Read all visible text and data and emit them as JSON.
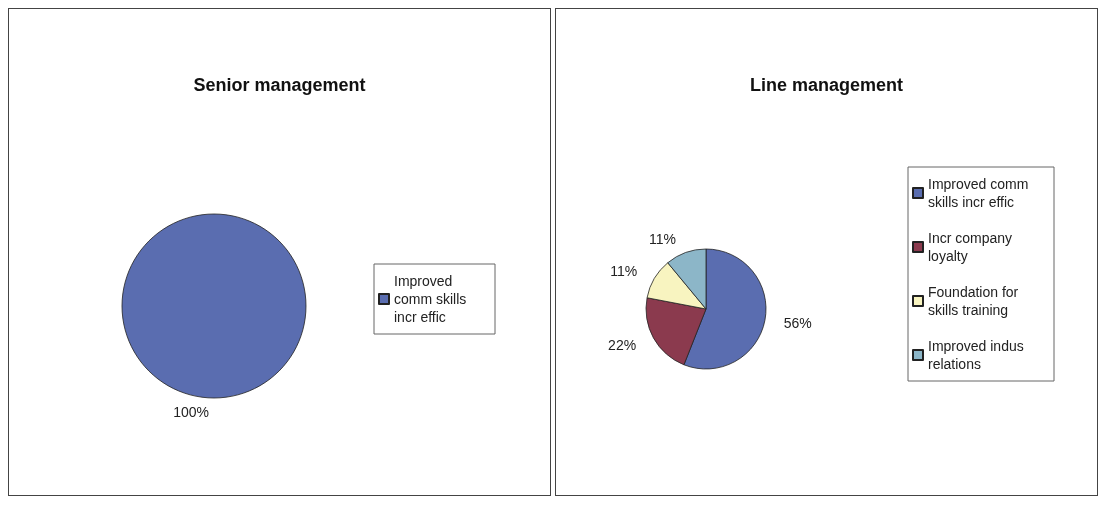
{
  "chart_data": [
    {
      "type": "pie",
      "title": "Senior management",
      "categories": [
        "Improved comm skills incr effic"
      ],
      "values": [
        100
      ],
      "colors": [
        "#5a6db0"
      ],
      "value_labels": [
        "100%"
      ],
      "legend": "right"
    },
    {
      "type": "pie",
      "title": "Line management",
      "categories": [
        "Improved comm skills incr effic",
        "Incr company loyalty",
        "Foundation for skills training",
        "Improved indus relations"
      ],
      "values": [
        56,
        22,
        11,
        11
      ],
      "colors": [
        "#5a6db0",
        "#8b3a4e",
        "#f8f4c0",
        "#8cb6c8"
      ],
      "value_labels": [
        "56%",
        "22%",
        "11%",
        "11%"
      ],
      "legend": "right"
    }
  ]
}
